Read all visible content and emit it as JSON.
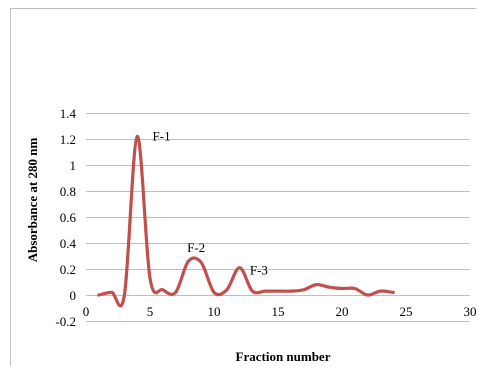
{
  "chart_data": {
    "type": "line",
    "title": "",
    "xlabel": "Fraction  number",
    "ylabel": "Absorbance  at  280 nm",
    "xlim": [
      0,
      30
    ],
    "ylim": [
      -0.2,
      1.4
    ],
    "x_ticks": [
      0,
      5,
      10,
      15,
      20,
      25,
      30
    ],
    "x_tick_labels": [
      "0",
      "5",
      "10",
      "15",
      "20",
      "25",
      "30"
    ],
    "y_ticks": [
      -0.2,
      0,
      0.2,
      0.4,
      0.6,
      0.8,
      1,
      1.2,
      1.4
    ],
    "y_tick_labels": [
      "-0.2",
      "0",
      "0.2",
      "0.4",
      "0.6",
      "0.8",
      "1",
      "1.2",
      "1.4"
    ],
    "grid": true,
    "line_color": "#c0504d",
    "series": [
      {
        "x": [
          1,
          2,
          3,
          4,
          5,
          6,
          7,
          8,
          9,
          10,
          11,
          12,
          13,
          14,
          15,
          16,
          17,
          18,
          19,
          20,
          21,
          22,
          23,
          24
        ],
        "y": [
          0.0,
          0.02,
          0.0,
          1.22,
          0.13,
          0.04,
          0.02,
          0.26,
          0.25,
          0.02,
          0.04,
          0.21,
          0.03,
          0.03,
          0.03,
          0.03,
          0.04,
          0.08,
          0.06,
          0.05,
          0.05,
          0.0,
          0.03,
          0.02
        ]
      }
    ],
    "annotations": [
      {
        "text": "F-1",
        "x": 5.2,
        "y": 1.22
      },
      {
        "text": "F-2",
        "x": 7.9,
        "y": 0.36
      },
      {
        "text": "F-3",
        "x": 12.8,
        "y": 0.19
      }
    ]
  }
}
